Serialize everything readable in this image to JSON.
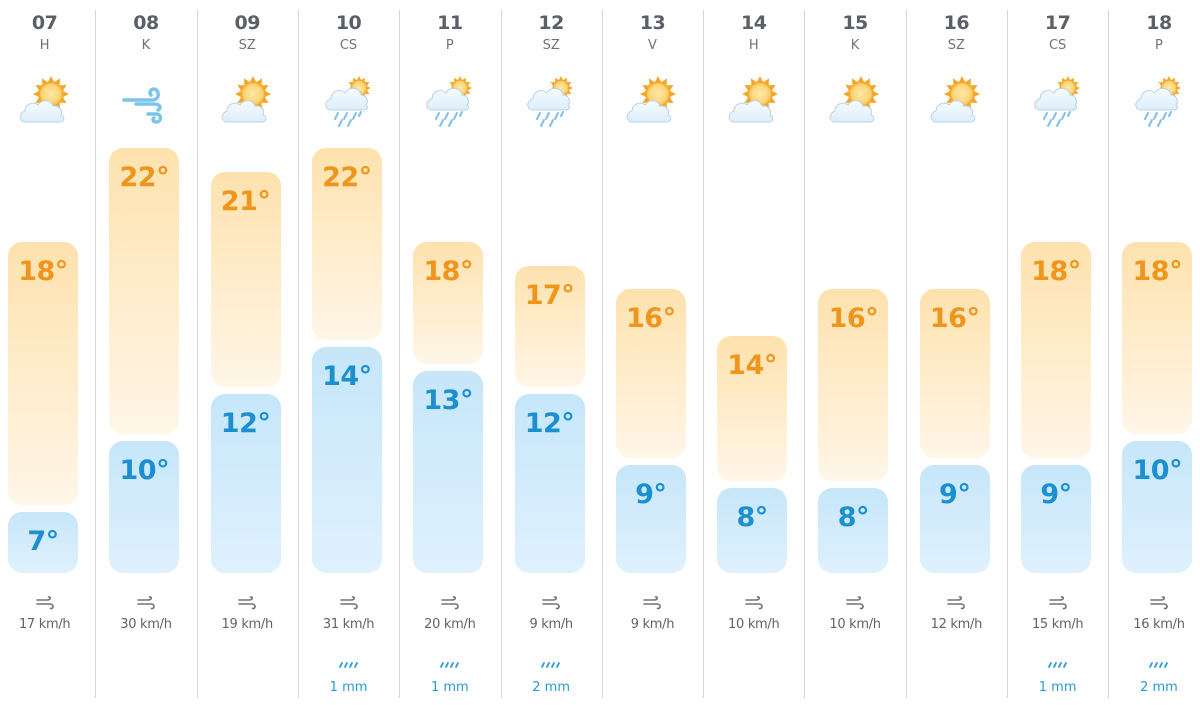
{
  "colors": {
    "high_text": "#ef951c",
    "low_text": "#1c8fd0",
    "high_bar": "#fde2ae",
    "low_bar": "#c6e6fa",
    "rain_text": "#2a9ccf",
    "separator": "#d4d6d9"
  },
  "days": [
    {
      "day": "07",
      "weekday": "H",
      "icon": "partly-cloudy",
      "high": "18°",
      "low": "7°",
      "wind": "17 km/h",
      "rain": null
    },
    {
      "day": "08",
      "weekday": "K",
      "icon": "windy",
      "high": "22°",
      "low": "10°",
      "wind": "30 km/h",
      "rain": null
    },
    {
      "day": "09",
      "weekday": "SZ",
      "icon": "partly-cloudy",
      "high": "21°",
      "low": "12°",
      "wind": "19 km/h",
      "rain": null
    },
    {
      "day": "10",
      "weekday": "CS",
      "icon": "rain-showers",
      "high": "22°",
      "low": "14°",
      "wind": "31 km/h",
      "rain": "1 mm"
    },
    {
      "day": "11",
      "weekday": "P",
      "icon": "rain-showers",
      "high": "18°",
      "low": "13°",
      "wind": "20 km/h",
      "rain": "1 mm"
    },
    {
      "day": "12",
      "weekday": "SZ",
      "icon": "rain-showers",
      "high": "17°",
      "low": "12°",
      "wind": "9 km/h",
      "rain": "2 mm"
    },
    {
      "day": "13",
      "weekday": "V",
      "icon": "partly-cloudy",
      "high": "16°",
      "low": "9°",
      "wind": "9 km/h",
      "rain": null
    },
    {
      "day": "14",
      "weekday": "H",
      "icon": "partly-cloudy",
      "high": "14°",
      "low": "8°",
      "wind": "10 km/h",
      "rain": null
    },
    {
      "day": "15",
      "weekday": "K",
      "icon": "partly-cloudy",
      "high": "16°",
      "low": "8°",
      "wind": "10 km/h",
      "rain": null
    },
    {
      "day": "16",
      "weekday": "SZ",
      "icon": "partly-cloudy",
      "high": "16°",
      "low": "9°",
      "wind": "12 km/h",
      "rain": null
    },
    {
      "day": "17",
      "weekday": "CS",
      "icon": "rain-showers",
      "high": "18°",
      "low": "9°",
      "wind": "15 km/h",
      "rain": "1 mm"
    },
    {
      "day": "18",
      "weekday": "P",
      "icon": "rain-showers",
      "high": "18°",
      "low": "10°",
      "wind": "16 km/h",
      "rain": "2 mm"
    }
  ],
  "chart_data": {
    "type": "bar",
    "title": "",
    "categories": [
      "07 H",
      "08 K",
      "09 SZ",
      "10 CS",
      "11 P",
      "12 SZ",
      "13 V",
      "14 H",
      "15 K",
      "16 SZ",
      "17 CS",
      "18 P"
    ],
    "series": [
      {
        "name": "Max temperature (°C)",
        "values": [
          18,
          22,
          21,
          22,
          18,
          17,
          16,
          14,
          16,
          16,
          18,
          18
        ]
      },
      {
        "name": "Min temperature (°C)",
        "values": [
          7,
          10,
          12,
          14,
          13,
          12,
          9,
          8,
          8,
          9,
          9,
          10
        ]
      },
      {
        "name": "Wind (km/h)",
        "values": [
          17,
          30,
          19,
          31,
          20,
          9,
          9,
          10,
          10,
          12,
          15,
          16
        ]
      },
      {
        "name": "Precipitation (mm)",
        "values": [
          0,
          0,
          0,
          1,
          1,
          2,
          0,
          0,
          0,
          0,
          1,
          2
        ]
      }
    ],
    "icons": [
      "partly-cloudy",
      "windy",
      "partly-cloudy",
      "rain-showers",
      "rain-showers",
      "rain-showers",
      "partly-cloudy",
      "partly-cloudy",
      "partly-cloudy",
      "partly-cloudy",
      "rain-showers",
      "rain-showers"
    ],
    "xlabel": "",
    "ylabel": "",
    "grid": false,
    "legend": "none"
  }
}
